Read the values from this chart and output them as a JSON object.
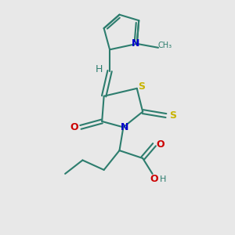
{
  "bg_color": "#e8e8e8",
  "bond_color": "#2d7d6e",
  "atom_colors": {
    "S": "#c8b400",
    "N": "#0000cc",
    "O": "#cc0000",
    "H": "#2d7d6e",
    "C": "#2d7d6e"
  },
  "bond_width": 1.5,
  "xlim": [
    0,
    10
  ],
  "ylim": [
    0,
    12
  ]
}
